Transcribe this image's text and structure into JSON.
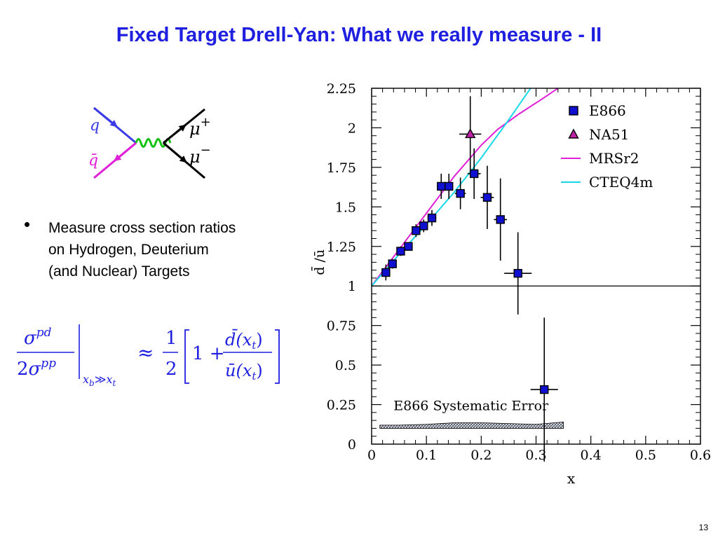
{
  "slide": {
    "title": "Fixed Target Drell-Yan:  What we really measure - II",
    "bullet_text": "Measure cross section ratios\non Hydrogen, Deuterium\n(and Nuclear) Targets",
    "page_number": "13"
  },
  "feynman": {
    "q_label": "q",
    "qbar_label": "q̄",
    "mu_plus": "μ+",
    "mu_minus": "μ−",
    "colors": {
      "quark": "#3a3ae6",
      "antiquark": "#e020d8",
      "photon": "#12c212",
      "muon": "#000000"
    }
  },
  "formula": {
    "lhs_num": "σ^pd",
    "lhs_den": "2σ^pp",
    "subscript": "x_b ≫ x_t",
    "approx": "≈",
    "half_num": "1",
    "half_den": "2",
    "one_plus": "1 +",
    "ratio_num": "d̄(x_t)",
    "ratio_den": "ū(x_t)",
    "color": "#1f1fe0"
  },
  "chart_data": {
    "type": "scatter",
    "title": "",
    "xlabel": "x",
    "ylabel": "d̄ /ū",
    "xlim": [
      0,
      0.6
    ],
    "ylim": [
      0,
      2.25
    ],
    "x_ticks": [
      "0",
      "0.1",
      "0.2",
      "0.3",
      "0.4",
      "0.5",
      "0.6"
    ],
    "y_ticks": [
      "0",
      "0.25",
      "0.5",
      "0.75",
      "1",
      "1.25",
      "1.5",
      "1.75",
      "2",
      "2.25"
    ],
    "reference_line_y": 1,
    "legend_position": "top-right",
    "systematic_label": "E866 Systematic Error",
    "series": [
      {
        "name": "E866",
        "marker": "square",
        "color": "#1010d0",
        "points": [
          {
            "x": 0.026,
            "y": 1.085,
            "yerr": 0.05,
            "xerr": 0.008
          },
          {
            "x": 0.038,
            "y": 1.14,
            "yerr": 0.03,
            "xerr": 0.006
          },
          {
            "x": 0.053,
            "y": 1.22,
            "yerr": 0.03,
            "xerr": 0.007
          },
          {
            "x": 0.067,
            "y": 1.25,
            "yerr": 0.025,
            "xerr": 0.007
          },
          {
            "x": 0.081,
            "y": 1.35,
            "yerr": 0.04,
            "xerr": 0.007
          },
          {
            "x": 0.095,
            "y": 1.38,
            "yerr": 0.04,
            "xerr": 0.007
          },
          {
            "x": 0.11,
            "y": 1.43,
            "yerr": 0.05,
            "xerr": 0.008
          },
          {
            "x": 0.127,
            "y": 1.63,
            "yerr": 0.08,
            "xerr": 0.008
          },
          {
            "x": 0.141,
            "y": 1.63,
            "yerr": 0.08,
            "xerr": 0.008
          },
          {
            "x": 0.162,
            "y": 1.585,
            "yerr": 0.1,
            "xerr": 0.01
          },
          {
            "x": 0.187,
            "y": 1.71,
            "yerr": 0.16,
            "xerr": 0.012
          },
          {
            "x": 0.211,
            "y": 1.56,
            "yerr": 0.2,
            "xerr": 0.012
          },
          {
            "x": 0.235,
            "y": 1.42,
            "yerr": 0.26,
            "xerr": 0.012
          },
          {
            "x": 0.267,
            "y": 1.08,
            "yerr": 0.26,
            "xerr": 0.025
          },
          {
            "x": 0.315,
            "y": 0.345,
            "yerr": 0.455,
            "xerr": 0.025
          }
        ]
      },
      {
        "name": "NA51",
        "marker": "triangle",
        "color": "#c020a8",
        "points": [
          {
            "x": 0.18,
            "y": 1.96,
            "yerr": 0.24,
            "xerr": 0.02
          }
        ]
      },
      {
        "name": "MRSr2",
        "line": true,
        "color": "#e020d8",
        "x": [
          0,
          0.05,
          0.1,
          0.15,
          0.2,
          0.23,
          0.27,
          0.31,
          0.34
        ],
        "y": [
          1.0,
          1.23,
          1.46,
          1.69,
          1.89,
          1.99,
          2.09,
          2.18,
          2.25
        ]
      },
      {
        "name": "CTEQ4m",
        "line": true,
        "color": "#18d8e8",
        "x": [
          0,
          0.05,
          0.1,
          0.15,
          0.2,
          0.25,
          0.29
        ],
        "y": [
          1.0,
          1.2,
          1.39,
          1.59,
          1.81,
          2.05,
          2.25
        ]
      }
    ],
    "systematic_band": {
      "x": [
        0.015,
        0.05,
        0.1,
        0.15,
        0.2,
        0.25,
        0.3,
        0.35
      ],
      "low": [
        0.1,
        0.1,
        0.1,
        0.1,
        0.1,
        0.1,
        0.1,
        0.1
      ],
      "high": [
        0.12,
        0.12,
        0.125,
        0.135,
        0.135,
        0.13,
        0.125,
        0.14
      ]
    }
  }
}
